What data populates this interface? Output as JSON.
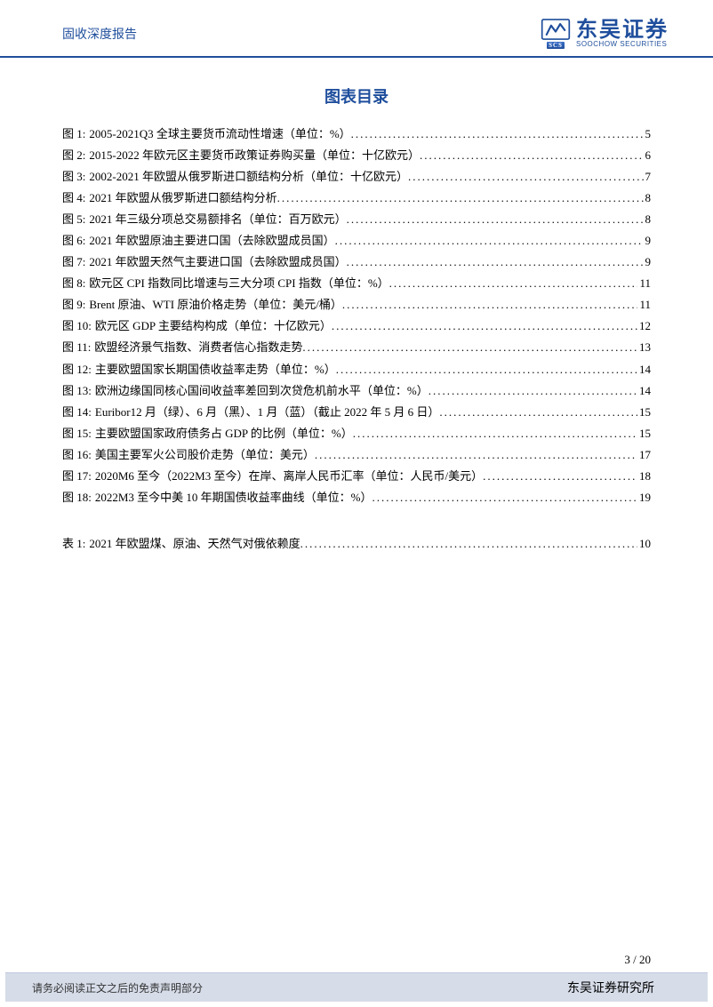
{
  "header": {
    "report_type": "固收深度报告",
    "logo_cn": "东吴证券",
    "logo_en": "SOOCHOW SECURITIES",
    "logo_scs": "SCS",
    "brand_color": "#1f4e9c"
  },
  "toc": {
    "title": "图表目录",
    "figures": [
      {
        "label": "图 1:",
        "desc": "2005-2021Q3 全球主要货币流动性增速（单位：%）",
        "page": "5"
      },
      {
        "label": "图 2:",
        "desc": "2015-2022 年欧元区主要货币政策证券购买量（单位：十亿欧元）",
        "page": "6"
      },
      {
        "label": "图 3:",
        "desc": "2002-2021 年欧盟从俄罗斯进口额结构分析（单位：十亿欧元）",
        "page": "7"
      },
      {
        "label": "图 4:",
        "desc": "2021 年欧盟从俄罗斯进口额结构分析",
        "page": "8"
      },
      {
        "label": "图 5:",
        "desc": "2021 年三级分项总交易额排名（单位：百万欧元）",
        "page": "8"
      },
      {
        "label": "图 6:",
        "desc": "2021 年欧盟原油主要进口国（去除欧盟成员国）",
        "page": "9"
      },
      {
        "label": "图 7:",
        "desc": "2021 年欧盟天然气主要进口国（去除欧盟成员国）",
        "page": "9"
      },
      {
        "label": "图 8:",
        "desc": "欧元区 CPI 指数同比增速与三大分项 CPI 指数（单位：%）",
        "page": "11"
      },
      {
        "label": "图 9:",
        "desc": "Brent 原油、WTI 原油价格走势（单位：美元/桶）",
        "page": "11"
      },
      {
        "label": "图 10:",
        "desc": "  欧元区 GDP 主要结构构成（单位：十亿欧元）",
        "page": "12"
      },
      {
        "label": "图 11:",
        "desc": "  欧盟经济景气指数、消费者信心指数走势",
        "page": "13"
      },
      {
        "label": "图 12:",
        "desc": "  主要欧盟国家长期国债收益率走势（单位：%）",
        "page": "14"
      },
      {
        "label": "图 13:",
        "desc": "  欧洲边缘国同核心国间收益率差回到次贷危机前水平（单位：%）",
        "page": "14"
      },
      {
        "label": "图 14:",
        "desc": "  Euribor12 月（绿）、6 月（黑）、1 月（蓝）（截止 2022 年 5 月 6 日）",
        "page": "15"
      },
      {
        "label": "图 15:",
        "desc": "  主要欧盟国家政府债务占 GDP 的比例（单位：%）",
        "page": "15"
      },
      {
        "label": "图 16:",
        "desc": "  美国主要军火公司股价走势（单位：美元）",
        "page": "17"
      },
      {
        "label": "图 17:",
        "desc": "  2020M6 至今（2022M3 至今）在岸、离岸人民币汇率（单位：人民币/美元）",
        "page": "18"
      },
      {
        "label": "图 18:",
        "desc": "  2022M3 至今中美 10 年期国债收益率曲线（单位：%）",
        "page": "19"
      }
    ],
    "tables": [
      {
        "label": "表 1:",
        "desc": "2021 年欧盟煤、原油、天然气对俄依赖度",
        "page": "10"
      }
    ]
  },
  "footer": {
    "page_current": "3",
    "page_total": "20",
    "disclaimer": "请务必阅读正文之后的免责声明部分",
    "institute": "东吴证券研究所",
    "bar_bg": "#d6dce8"
  }
}
